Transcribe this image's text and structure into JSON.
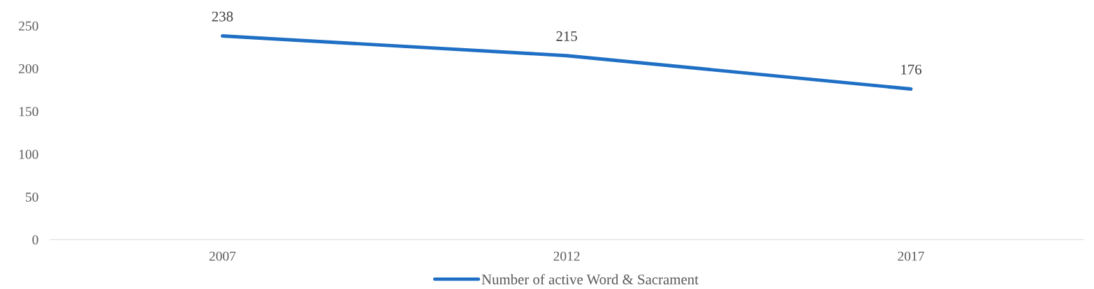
{
  "chart_data": {
    "type": "line",
    "categories": [
      "2007",
      "2012",
      "2017"
    ],
    "series": [
      {
        "name": "Number of active Word & Sacrament",
        "color": "#1f6fc5",
        "values": [
          238,
          215,
          176
        ]
      }
    ],
    "ylim": [
      0,
      250
    ],
    "yticks": [
      0,
      50,
      100,
      150,
      200,
      250
    ],
    "grid": false,
    "legend": "bottom",
    "data_labels": true,
    "marker": "none",
    "line_style": "solid"
  }
}
